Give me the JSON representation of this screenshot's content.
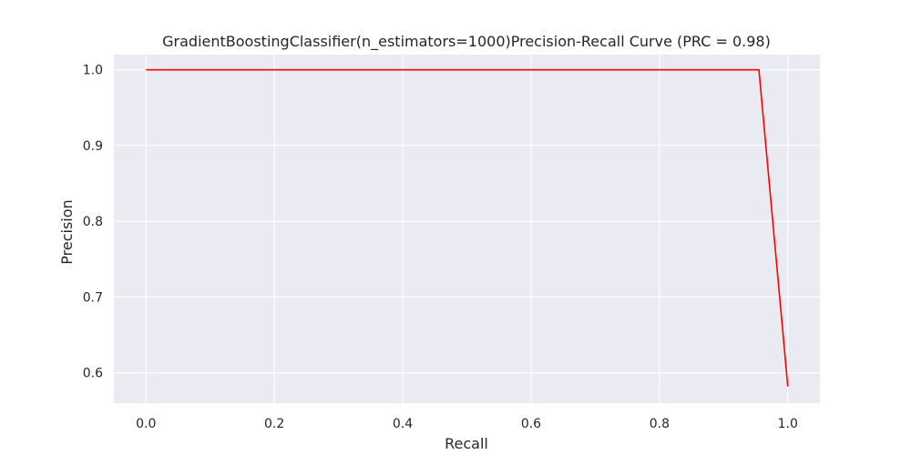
{
  "chart_data": {
    "type": "line",
    "title": "GradientBoostingClassifier(n_estimators=1000)Precision-Recall Curve (PRC = 0.98)",
    "xlabel": "Recall",
    "ylabel": "Precision",
    "xlim": [
      -0.05,
      1.05
    ],
    "ylim": [
      0.56,
      1.02
    ],
    "xticks": [
      0.0,
      0.2,
      0.4,
      0.6,
      0.8,
      1.0
    ],
    "xtick_labels": [
      "0.0",
      "0.2",
      "0.4",
      "0.6",
      "0.8",
      "1.0"
    ],
    "yticks": [
      0.6,
      0.7,
      0.8,
      0.9,
      1.0
    ],
    "ytick_labels": [
      "0.6",
      "0.7",
      "0.8",
      "0.9",
      "1.0"
    ],
    "grid": true,
    "colors": {
      "background": "#eaeaf2",
      "grid": "#ffffff",
      "line": "#ff0000"
    },
    "series": [
      {
        "x": [
          0.0,
          0.955,
          1.0
        ],
        "y": [
          1.0,
          1.0,
          0.582
        ]
      }
    ]
  }
}
